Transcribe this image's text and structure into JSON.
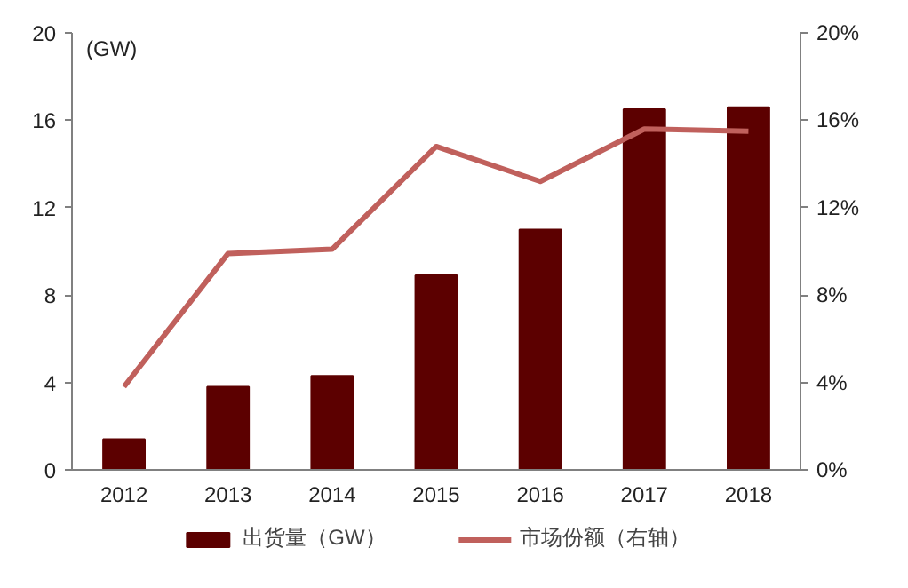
{
  "chart_data": {
    "type": "bar",
    "ylabel": "(GW)",
    "categories": [
      "2012",
      "2013",
      "2014",
      "2015",
      "2016",
      "2017",
      "2018"
    ],
    "series": [
      {
        "name": "出货量（GW）",
        "color": "#5c0000",
        "values": [
          1.4,
          3.8,
          4.3,
          8.9,
          11.0,
          16.5,
          16.6
        ]
      },
      {
        "name": "市场份额（右轴）",
        "type": "line",
        "axis": "y2",
        "color": "#c0605c",
        "values": [
          0.038,
          0.099,
          0.101,
          0.148,
          0.132,
          0.156,
          0.155
        ]
      }
    ],
    "ylim": [
      0,
      20
    ],
    "yticks": [
      0,
      4,
      8,
      12,
      16,
      20
    ],
    "y2lim": [
      0,
      0.2
    ],
    "y2ticks": [
      {
        "value": 0,
        "label": "0%"
      },
      {
        "value": 0.04,
        "label": "4%"
      },
      {
        "value": 0.08,
        "label": "8%"
      },
      {
        "value": 0.12,
        "label": "12%"
      },
      {
        "value": 0.16,
        "label": "16%"
      },
      {
        "value": 0.2,
        "label": "20%"
      }
    ],
    "legend": "bottom",
    "grid": false,
    "marker": "none",
    "line_style": "solid"
  }
}
